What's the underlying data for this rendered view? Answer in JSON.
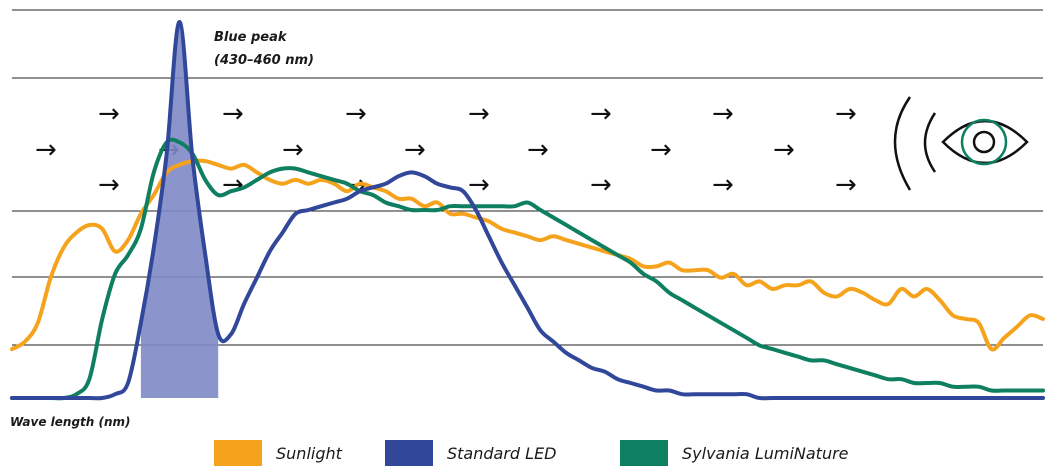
{
  "chart_data": {
    "type": "line",
    "xlabel": "Wave length (nm)",
    "ylabel": "",
    "x_range": [
      380,
      780
    ],
    "y_range": [
      0,
      100
    ],
    "grid": true,
    "legend_position": "bottom",
    "annotation": {
      "line1": "Blue peak",
      "line2": "(430–460 nm)",
      "x_from": 430,
      "x_to": 460
    },
    "series": [
      {
        "name": "Sunlight",
        "color": "#f5a21c",
        "x": [
          380,
          385,
          390,
          395,
          400,
          405,
          410,
          415,
          420,
          425,
          430,
          435,
          440,
          445,
          450,
          455,
          460,
          465,
          470,
          475,
          480,
          485,
          490,
          495,
          500,
          505,
          510,
          515,
          520,
          525,
          530,
          535,
          540,
          545,
          550,
          555,
          560,
          565,
          570,
          575,
          580,
          585,
          590,
          595,
          600,
          605,
          610,
          615,
          620,
          625,
          630,
          635,
          640,
          645,
          650,
          655,
          660,
          665,
          670,
          675,
          680,
          685,
          690,
          695,
          700,
          705,
          710,
          715,
          720,
          725,
          730,
          735,
          740,
          745,
          750,
          755,
          760,
          765,
          770,
          775,
          780
        ],
        "y": [
          13,
          15,
          20,
          32,
          40,
          44,
          46,
          45,
          39,
          42,
          49,
          54,
          60,
          62,
          63,
          63,
          62,
          61,
          62,
          60,
          58,
          57,
          58,
          57,
          58,
          57,
          55,
          57,
          56,
          55,
          53,
          53,
          51,
          52,
          49,
          49,
          48,
          47,
          45,
          44,
          43,
          42,
          43,
          42,
          41,
          40,
          39,
          38,
          37,
          35,
          35,
          36,
          34,
          34,
          34,
          32,
          33,
          30,
          31,
          29,
          30,
          30,
          31,
          28,
          27,
          29,
          28,
          26,
          25,
          29,
          27,
          29,
          26,
          22,
          21,
          20,
          13,
          16,
          19,
          22,
          21
        ]
      },
      {
        "name": "Standard LED",
        "color": "#31479a",
        "x": [
          380,
          385,
          390,
          395,
          400,
          405,
          410,
          415,
          420,
          425,
          430,
          435,
          440,
          445,
          450,
          455,
          460,
          465,
          470,
          475,
          480,
          485,
          490,
          495,
          500,
          505,
          510,
          515,
          520,
          525,
          530,
          535,
          540,
          545,
          550,
          555,
          560,
          565,
          570,
          575,
          580,
          585,
          590,
          595,
          600,
          605,
          610,
          615,
          620,
          625,
          630,
          635,
          640,
          645,
          650,
          655,
          660,
          665,
          670,
          675,
          680,
          685,
          690,
          695,
          700,
          705,
          710,
          715,
          720,
          725,
          730,
          735,
          740,
          745,
          750,
          755,
          760,
          765,
          770,
          775,
          780
        ],
        "y": [
          0,
          0,
          0,
          0,
          0,
          0,
          0,
          0,
          1,
          4,
          20,
          40,
          65,
          100,
          64,
          38,
          17,
          17,
          25,
          32,
          39,
          44,
          49,
          50,
          51,
          52,
          53,
          55,
          56,
          57,
          59,
          60,
          59,
          57,
          56,
          55,
          50,
          43,
          36,
          30,
          24,
          18,
          15,
          12,
          10,
          8,
          7,
          5,
          4,
          3,
          2,
          2,
          1,
          1,
          1,
          1,
          1,
          1,
          0,
          0,
          0,
          0,
          0,
          0,
          0,
          0,
          0,
          0,
          0,
          0,
          0,
          0,
          0,
          0,
          0,
          0,
          0,
          0,
          0,
          0,
          0
        ]
      },
      {
        "name": "Sylvania LumiNature",
        "color": "#0f7f62",
        "x": [
          380,
          385,
          390,
          395,
          400,
          405,
          410,
          415,
          420,
          425,
          430,
          435,
          440,
          445,
          450,
          455,
          460,
          465,
          470,
          475,
          480,
          485,
          490,
          495,
          500,
          505,
          510,
          515,
          520,
          525,
          530,
          535,
          540,
          545,
          550,
          555,
          560,
          565,
          570,
          575,
          580,
          585,
          590,
          595,
          600,
          605,
          610,
          615,
          620,
          625,
          630,
          635,
          640,
          645,
          650,
          655,
          660,
          665,
          670,
          675,
          680,
          685,
          690,
          695,
          700,
          705,
          710,
          715,
          720,
          725,
          730,
          735,
          740,
          745,
          750,
          755,
          760,
          765,
          770,
          775,
          780
        ],
        "y": [
          0,
          0,
          0,
          0,
          0,
          1,
          5,
          21,
          33,
          38,
          45,
          60,
          68,
          68,
          65,
          58,
          54,
          55,
          56,
          58,
          60,
          61,
          61,
          60,
          59,
          58,
          57,
          55,
          54,
          52,
          51,
          50,
          50,
          50,
          51,
          51,
          51,
          51,
          51,
          51,
          52,
          50,
          48,
          46,
          44,
          42,
          40,
          38,
          36,
          33,
          31,
          28,
          26,
          24,
          22,
          20,
          18,
          16,
          14,
          13,
          12,
          11,
          10,
          10,
          9,
          8,
          7,
          6,
          5,
          5,
          4,
          4,
          4,
          3,
          3,
          3,
          2,
          2,
          2,
          2,
          2
        ]
      }
    ]
  }
}
